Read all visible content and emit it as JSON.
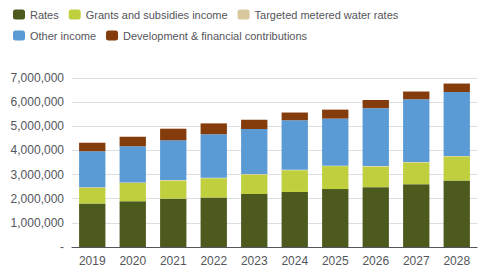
{
  "chart_data": {
    "type": "bar",
    "stacked": true,
    "grid": true,
    "legend": "top",
    "categories": [
      "2019",
      "2020",
      "2021",
      "2022",
      "2023",
      "2024",
      "2025",
      "2026",
      "2027",
      "2028"
    ],
    "series": [
      {
        "name": "Rates",
        "color": "#4d5a1e",
        "values": [
          1800000,
          1900000,
          2000000,
          2050000,
          2200000,
          2280000,
          2400000,
          2480000,
          2600000,
          2750000
        ]
      },
      {
        "name": "Grants and subsidies income",
        "color": "#bfcf3d",
        "values": [
          650000,
          750000,
          750000,
          800000,
          800000,
          900000,
          950000,
          850000,
          900000,
          1000000
        ]
      },
      {
        "name": "Targeted metered water rates",
        "color": "#d9c89e",
        "values": [
          20000,
          20000,
          20000,
          20000,
          20000,
          20000,
          20000,
          20000,
          20000,
          20000
        ]
      },
      {
        "name": "Other income",
        "color": "#5b9bd5",
        "values": [
          1500000,
          1500000,
          1650000,
          1800000,
          1870000,
          2050000,
          1950000,
          2400000,
          2600000,
          2650000
        ]
      },
      {
        "name": "Development & financial contributions",
        "color": "#843c0c",
        "values": [
          350000,
          400000,
          480000,
          450000,
          380000,
          320000,
          370000,
          340000,
          320000,
          350000
        ]
      }
    ],
    "ylim": [
      0,
      7000000
    ],
    "yticks": [
      {
        "value": 0,
        "label": "-"
      },
      {
        "value": 1000000,
        "label": "1,000,000"
      },
      {
        "value": 2000000,
        "label": "2,000,000"
      },
      {
        "value": 3000000,
        "label": "3,000,000"
      },
      {
        "value": 4000000,
        "label": "4,000,000"
      },
      {
        "value": 5000000,
        "label": "5,000,000"
      },
      {
        "value": 6000000,
        "label": "6,000,000"
      },
      {
        "value": 7000000,
        "label": "7,000,000"
      }
    ]
  }
}
